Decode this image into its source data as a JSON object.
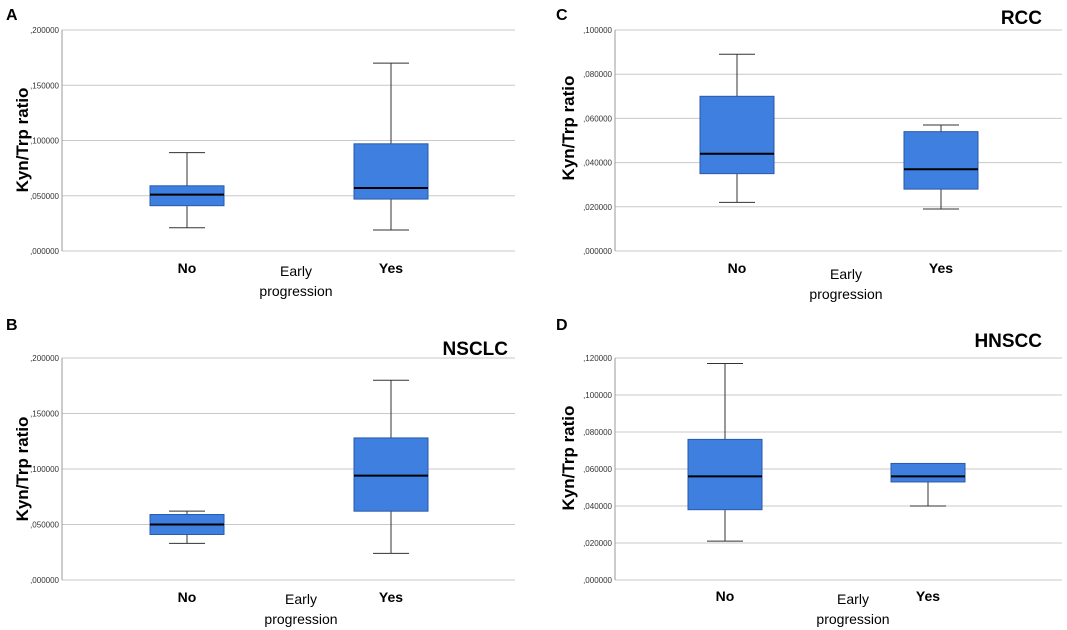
{
  "box_color": "#3f7fe0",
  "box_stroke": "#2a5aa8",
  "chart_data": [
    {
      "panel": "A",
      "type": "boxplot",
      "title": "",
      "xlabel": "Early\nprogression",
      "ylabel": "Kyn/Trp ratio",
      "ylim": [
        0,
        0.2
      ],
      "yticks": [
        0,
        0.05,
        0.1,
        0.15,
        0.2
      ],
      "ytick_labels": [
        ",000000",
        ",050000",
        ",100000",
        ",150000",
        ",200000"
      ],
      "categories": [
        "No",
        "Yes"
      ],
      "boxes": [
        {
          "category": "No",
          "min": 0.021,
          "q1": 0.041,
          "median": 0.051,
          "q3": 0.059,
          "max": 0.089
        },
        {
          "category": "Yes",
          "min": 0.019,
          "q1": 0.047,
          "median": 0.057,
          "q3": 0.097,
          "max": 0.17
        }
      ]
    },
    {
      "panel": "B",
      "type": "boxplot",
      "title": "NSCLC",
      "xlabel": "Early\nprogression",
      "ylabel": "Kyn/Trp ratio",
      "ylim": [
        0,
        0.2
      ],
      "yticks": [
        0,
        0.05,
        0.1,
        0.15,
        0.2
      ],
      "ytick_labels": [
        ",000000",
        ",050000",
        ",100000",
        ",150000",
        ",200000"
      ],
      "categories": [
        "No",
        "Yes"
      ],
      "boxes": [
        {
          "category": "No",
          "min": 0.033,
          "q1": 0.041,
          "median": 0.05,
          "q3": 0.059,
          "max": 0.062
        },
        {
          "category": "Yes",
          "min": 0.024,
          "q1": 0.062,
          "median": 0.094,
          "q3": 0.128,
          "max": 0.18
        }
      ]
    },
    {
      "panel": "C",
      "type": "boxplot",
      "title": "RCC",
      "xlabel": "Early\nprogression",
      "ylabel": "Kyn/Trp ratio",
      "ylim": [
        0,
        0.1
      ],
      "yticks": [
        0,
        0.02,
        0.04,
        0.06,
        0.08,
        0.1
      ],
      "ytick_labels": [
        ",000000",
        ",020000",
        ",040000",
        ",060000",
        ",080000",
        ",100000"
      ],
      "categories": [
        "No",
        "Yes"
      ],
      "boxes": [
        {
          "category": "No",
          "min": 0.022,
          "q1": 0.035,
          "median": 0.044,
          "q3": 0.07,
          "max": 0.089
        },
        {
          "category": "Yes",
          "min": 0.019,
          "q1": 0.028,
          "median": 0.037,
          "q3": 0.054,
          "max": 0.057
        }
      ]
    },
    {
      "panel": "D",
      "type": "boxplot",
      "title": "HNSCC",
      "xlabel": "Early\nprogression",
      "ylabel": "Kyn/Trp ratio",
      "ylim": [
        0,
        0.12
      ],
      "yticks": [
        0,
        0.02,
        0.04,
        0.06,
        0.08,
        0.1,
        0.12
      ],
      "ytick_labels": [
        ",000000",
        ",020000",
        ",040000",
        ",060000",
        ",080000",
        ",100000",
        ",120000"
      ],
      "categories": [
        "No",
        "Yes"
      ],
      "boxes": [
        {
          "category": "No",
          "min": 0.021,
          "q1": 0.038,
          "median": 0.056,
          "q3": 0.076,
          "max": 0.117
        },
        {
          "category": "Yes",
          "min": 0.04,
          "q1": 0.053,
          "median": 0.056,
          "q3": 0.063,
          "max": 0.063
        }
      ]
    }
  ]
}
